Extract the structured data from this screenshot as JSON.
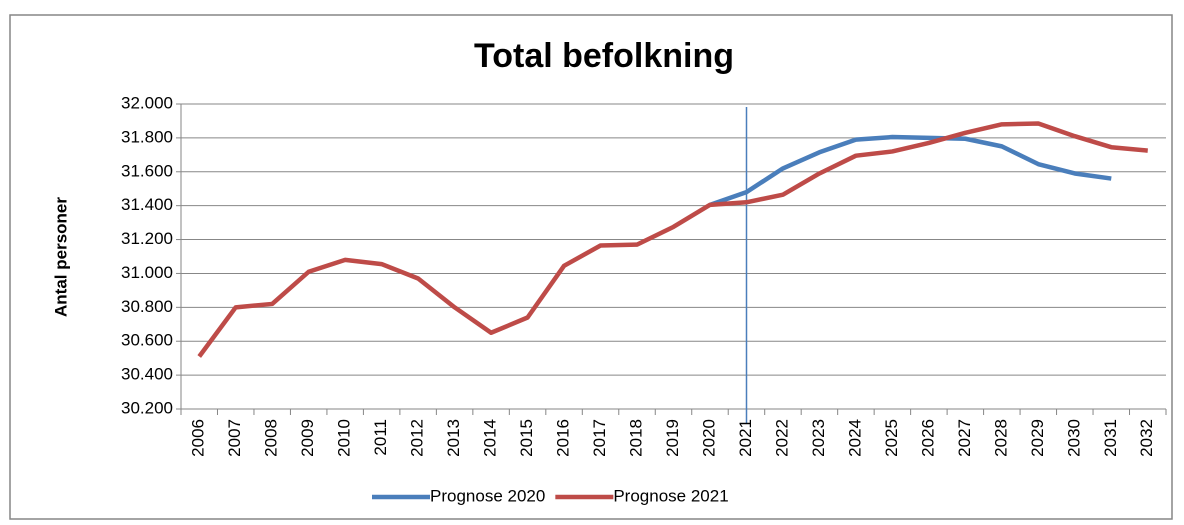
{
  "chart_data": {
    "type": "line",
    "title": "Total befolkning",
    "y_label": "Antal personer",
    "categories": [
      "2006",
      "2007",
      "2008",
      "2009",
      "2010",
      "2011",
      "2012",
      "2013",
      "2014",
      "2015",
      "2016",
      "2017",
      "2018",
      "2019",
      "2020",
      "2021",
      "2022",
      "2023",
      "2024",
      "2025",
      "2026",
      "2027",
      "2028",
      "2029",
      "2030",
      "2031",
      "2032"
    ],
    "series": [
      {
        "name": "Prognose 2020",
        "color": "#4a7ebb",
        "values": [
          null,
          null,
          null,
          null,
          null,
          null,
          null,
          null,
          null,
          null,
          null,
          null,
          null,
          null,
          31405,
          31480,
          31620,
          31715,
          31790,
          31805,
          31800,
          31795,
          31750,
          31645,
          31590,
          31560,
          null
        ]
      },
      {
        "name": "Prognose 2021",
        "color": "#be4b48",
        "values": [
          30510,
          30800,
          30820,
          31010,
          31080,
          31055,
          30970,
          30800,
          30650,
          30740,
          31045,
          31165,
          31170,
          31275,
          31405,
          31420,
          31465,
          31590,
          31695,
          31720,
          31770,
          31830,
          31880,
          31885,
          31810,
          31745,
          31725
        ]
      }
    ],
    "ylim": [
      30200,
      32000
    ],
    "yticks": [
      {
        "value": 30200,
        "label": "30.200"
      },
      {
        "value": 30400,
        "label": "30.400"
      },
      {
        "value": 30600,
        "label": "30.600"
      },
      {
        "value": 30800,
        "label": "30.800"
      },
      {
        "value": 31000,
        "label": "31.000"
      },
      {
        "value": 31200,
        "label": "31.200"
      },
      {
        "value": 31400,
        "label": "31.400"
      },
      {
        "value": 31600,
        "label": "31.600"
      },
      {
        "value": 31800,
        "label": "31.800"
      },
      {
        "value": 32000,
        "label": "32.000"
      }
    ],
    "grid": true,
    "legend": "bottom"
  }
}
